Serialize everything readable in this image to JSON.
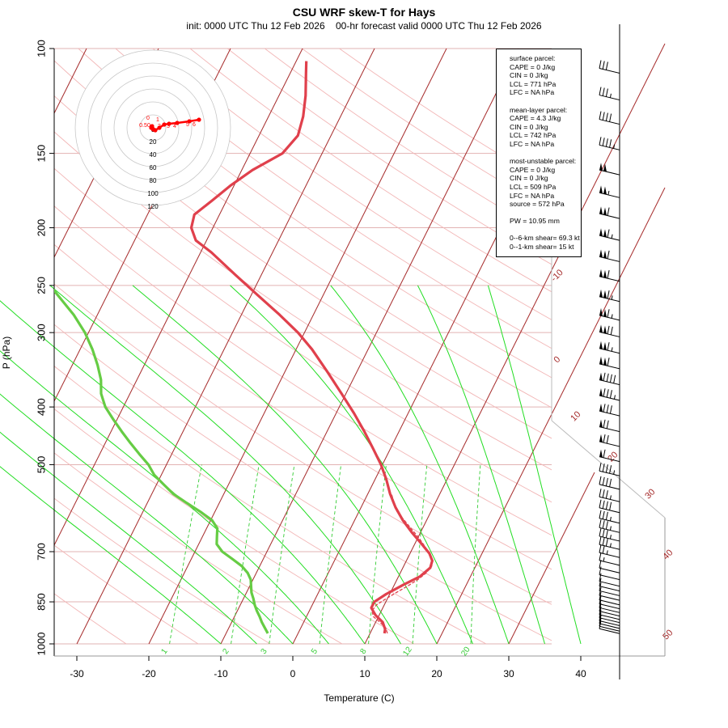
{
  "title": "CSU WRF skew-T for Hays",
  "subtitle": "init: 0000 UTC Thu 12 Feb 2026    00-hr forecast valid 0000 UTC Thu 12 Feb 2026",
  "chart_data": {
    "type": "skew-t",
    "xlabel": "Temperature (C)",
    "ylabel": "P (hPa)",
    "pressure_ticks": [
      100,
      150,
      200,
      250,
      300,
      400,
      500,
      700,
      850,
      1000
    ],
    "temperature_ticks": [
      -30,
      -20,
      -10,
      0,
      10,
      20,
      30,
      40
    ],
    "isotherm_labels": [
      -10,
      0,
      10,
      20,
      30,
      40,
      50
    ],
    "mixing_ratio_labels": [
      "1",
      "2",
      "3",
      "5",
      "8",
      "12",
      "20"
    ],
    "colors": {
      "temperature": "#e0404c",
      "parcel": "#e0404c",
      "dewpoint": "#66cc44",
      "isotherm": "#a52a2a",
      "dry_adiabat": "#f2b6b6",
      "moist_adiabat": "#22dd22",
      "mixing_ratio": "#33cc33",
      "isobar": "#e2b3b3",
      "hodograph": "#ff0000"
    },
    "series": [
      {
        "name": "Temperature",
        "points": [
          {
            "p": 960,
            "t": 12.0
          },
          {
            "p": 945,
            "t": 11.8
          },
          {
            "p": 920,
            "t": 11.0
          },
          {
            "p": 895,
            "t": 9.5
          },
          {
            "p": 870,
            "t": 8.4
          },
          {
            "p": 850,
            "t": 8.4
          },
          {
            "p": 825,
            "t": 9.5
          },
          {
            "p": 795,
            "t": 11.3
          },
          {
            "p": 770,
            "t": 13.0
          },
          {
            "p": 745,
            "t": 13.8
          },
          {
            "p": 725,
            "t": 13.6
          },
          {
            "p": 705,
            "t": 12.7
          },
          {
            "p": 680,
            "t": 11.0
          },
          {
            "p": 650,
            "t": 8.8
          },
          {
            "p": 620,
            "t": 6.7
          },
          {
            "p": 590,
            "t": 4.8
          },
          {
            "p": 560,
            "t": 3.1
          },
          {
            "p": 530,
            "t": 1.6
          },
          {
            "p": 500,
            "t": -0.2
          },
          {
            "p": 470,
            "t": -2.4
          },
          {
            "p": 440,
            "t": -4.8
          },
          {
            "p": 410,
            "t": -7.5
          },
          {
            "p": 380,
            "t": -10.6
          },
          {
            "p": 350,
            "t": -14.0
          },
          {
            "p": 320,
            "t": -17.8
          },
          {
            "p": 300,
            "t": -20.9
          },
          {
            "p": 280,
            "t": -24.7
          },
          {
            "p": 260,
            "t": -29.0
          },
          {
            "p": 240,
            "t": -33.6
          },
          {
            "p": 220,
            "t": -38.5
          },
          {
            "p": 210,
            "t": -41.5
          },
          {
            "p": 200,
            "t": -43.0
          },
          {
            "p": 190,
            "t": -43.5
          },
          {
            "p": 180,
            "t": -42.0
          },
          {
            "p": 170,
            "t": -40.5
          },
          {
            "p": 160,
            "t": -38.5
          },
          {
            "p": 150,
            "t": -35.5
          },
          {
            "p": 140,
            "t": -34.6
          },
          {
            "p": 130,
            "t": -35.2
          },
          {
            "p": 120,
            "t": -36.3
          },
          {
            "p": 110,
            "t": -37.8
          },
          {
            "p": 105,
            "t": -38.6
          }
        ]
      },
      {
        "name": "Dewpoint",
        "points": [
          {
            "p": 960,
            "t": -4.2
          },
          {
            "p": 940,
            "t": -5.0
          },
          {
            "p": 920,
            "t": -5.8
          },
          {
            "p": 900,
            "t": -6.5
          },
          {
            "p": 880,
            "t": -7.3
          },
          {
            "p": 860,
            "t": -8.0
          },
          {
            "p": 840,
            "t": -8.6
          },
          {
            "p": 820,
            "t": -9.3
          },
          {
            "p": 800,
            "t": -9.8
          },
          {
            "p": 780,
            "t": -10.3
          },
          {
            "p": 760,
            "t": -11.2
          },
          {
            "p": 740,
            "t": -12.5
          },
          {
            "p": 720,
            "t": -14.3
          },
          {
            "p": 700,
            "t": -16.2
          },
          {
            "p": 680,
            "t": -17.5
          },
          {
            "p": 660,
            "t": -18.0
          },
          {
            "p": 640,
            "t": -18.5
          },
          {
            "p": 620,
            "t": -19.8
          },
          {
            "p": 600,
            "t": -22.0
          },
          {
            "p": 580,
            "t": -24.5
          },
          {
            "p": 560,
            "t": -27.0
          },
          {
            "p": 540,
            "t": -29.0
          },
          {
            "p": 520,
            "t": -31.0
          },
          {
            "p": 500,
            "t": -32.5
          },
          {
            "p": 480,
            "t": -34.5
          },
          {
            "p": 460,
            "t": -36.5
          },
          {
            "p": 440,
            "t": -38.5
          },
          {
            "p": 420,
            "t": -40.5
          },
          {
            "p": 400,
            "t": -42.5
          },
          {
            "p": 380,
            "t": -44.0
          },
          {
            "p": 360,
            "t": -45.0
          },
          {
            "p": 340,
            "t": -46.5
          },
          {
            "p": 320,
            "t": -48.3
          },
          {
            "p": 300,
            "t": -50.5
          },
          {
            "p": 280,
            "t": -53.3
          },
          {
            "p": 260,
            "t": -56.8
          },
          {
            "p": 240,
            "t": -60.5
          },
          {
            "p": 220,
            "t": -65.0
          },
          {
            "p": 200,
            "t": -70.0
          },
          {
            "p": 190,
            "t": -73.5
          },
          {
            "p": 180,
            "t": -76.5
          },
          {
            "p": 170,
            "t": -79.5
          }
        ]
      },
      {
        "name": "Parcel",
        "points": [
          {
            "p": 960,
            "t": 12.4
          },
          {
            "p": 940,
            "t": 11.8
          },
          {
            "p": 920,
            "t": 10.6
          },
          {
            "p": 900,
            "t": 9.3
          },
          {
            "p": 880,
            "t": 8.7
          },
          {
            "p": 860,
            "t": 8.9
          },
          {
            "p": 840,
            "t": 9.8
          },
          {
            "p": 820,
            "t": 10.8
          },
          {
            "p": 800,
            "t": 11.9
          },
          {
            "p": 780,
            "t": 12.9
          },
          {
            "p": 760,
            "t": 13.6
          },
          {
            "p": 740,
            "t": 13.9
          },
          {
            "p": 720,
            "t": 13.4
          },
          {
            "p": 700,
            "t": 12.4
          },
          {
            "p": 680,
            "t": 11.2
          },
          {
            "p": 660,
            "t": 9.9
          },
          {
            "p": 640,
            "t": 8.4
          },
          {
            "p": 620,
            "t": 6.9
          },
          {
            "p": 600,
            "t": 5.3
          },
          {
            "p": 580,
            "t": 4.3
          },
          {
            "p": 560,
            "t": 3.3
          }
        ]
      }
    ],
    "hodograph": {
      "rings": [
        20,
        40,
        60,
        80,
        100,
        120
      ],
      "point_labels": [
        "0",
        "0",
        "0.5",
        "1",
        "2",
        "3",
        "4",
        "5",
        "6"
      ],
      "points": [
        {
          "u": 0.5,
          "v": 2
        },
        {
          "u": -2,
          "v": 0
        },
        {
          "u": -1,
          "v": -2
        },
        {
          "u": 3,
          "v": 3
        },
        {
          "u": 8,
          "v": 0
        },
        {
          "u": 14,
          "v": -4
        },
        {
          "u": 20,
          "v": -5
        },
        {
          "u": 30,
          "v": -6
        },
        {
          "u": 45,
          "v": -8
        },
        {
          "u": 57,
          "v": -10
        }
      ]
    },
    "winds": [
      {
        "p": 110,
        "speed": 30
      },
      {
        "p": 122,
        "speed": 35
      },
      {
        "p": 134,
        "speed": 40
      },
      {
        "p": 148,
        "speed": 45
      },
      {
        "p": 163,
        "speed": 100
      },
      {
        "p": 178,
        "speed": 105
      },
      {
        "p": 193,
        "speed": 110
      },
      {
        "p": 210,
        "speed": 115
      },
      {
        "p": 228,
        "speed": 110
      },
      {
        "p": 246,
        "speed": 110
      },
      {
        "p": 266,
        "speed": 115
      },
      {
        "p": 286,
        "speed": 115
      },
      {
        "p": 305,
        "speed": 120
      },
      {
        "p": 325,
        "speed": 115
      },
      {
        "p": 345,
        "speed": 110
      },
      {
        "p": 367,
        "speed": 90
      },
      {
        "p": 390,
        "speed": 85
      },
      {
        "p": 414,
        "speed": 80
      },
      {
        "p": 440,
        "speed": 70
      },
      {
        "p": 466,
        "speed": 70
      },
      {
        "p": 494,
        "speed": 60
      },
      {
        "p": 522,
        "speed": 45
      },
      {
        "p": 550,
        "speed": 40
      },
      {
        "p": 577,
        "speed": 35
      },
      {
        "p": 602,
        "speed": 40
      },
      {
        "p": 627,
        "speed": 35
      },
      {
        "p": 650,
        "speed": 35
      },
      {
        "p": 672,
        "speed": 35
      },
      {
        "p": 694,
        "speed": 35
      },
      {
        "p": 716,
        "speed": 25
      },
      {
        "p": 738,
        "speed": 15
      },
      {
        "p": 760,
        "speed": 10
      },
      {
        "p": 780,
        "speed": 10
      },
      {
        "p": 800,
        "speed": 10
      },
      {
        "p": 815,
        "speed": 10
      },
      {
        "p": 830,
        "speed": 10
      },
      {
        "p": 845,
        "speed": 10
      },
      {
        "p": 860,
        "speed": 10
      },
      {
        "p": 873,
        "speed": 10
      },
      {
        "p": 886,
        "speed": 10
      },
      {
        "p": 898,
        "speed": 10
      },
      {
        "p": 910,
        "speed": 10
      },
      {
        "p": 921,
        "speed": 10
      },
      {
        "p": 932,
        "speed": 10
      },
      {
        "p": 942,
        "speed": 10
      },
      {
        "p": 952,
        "speed": 10
      },
      {
        "p": 961,
        "speed": 10
      }
    ]
  },
  "stats": {
    "surface": {
      "header": "surface parcel:",
      "cape": "CAPE = 0 J/kg",
      "cin": "CIN = 0 J/kg",
      "lcl": "LCL = 771 hPa",
      "lfc": "LFC = NA hPa"
    },
    "mean_layer": {
      "header": "mean-layer parcel:",
      "cape": "CAPE = 4.3 J/kg",
      "cin": "CIN = 0 J/kg",
      "lcl": "LCL = 742 hPa",
      "lfc": "LFC = NA hPa"
    },
    "most_unstable": {
      "header": "most-unstable parcel:",
      "cape": "CAPE = 0 J/kg",
      "cin": "CIN = 0 J/kg",
      "lcl": "LCL = 509 hPa",
      "lfc": "LFC = NA hPa",
      "source": "source = 572 hPa"
    },
    "pw": "PW =  10.95 mm",
    "shear_6km": "0--6-km shear= 69.3 kt",
    "shear_1km": "0--1-km shear= 15 kt"
  }
}
